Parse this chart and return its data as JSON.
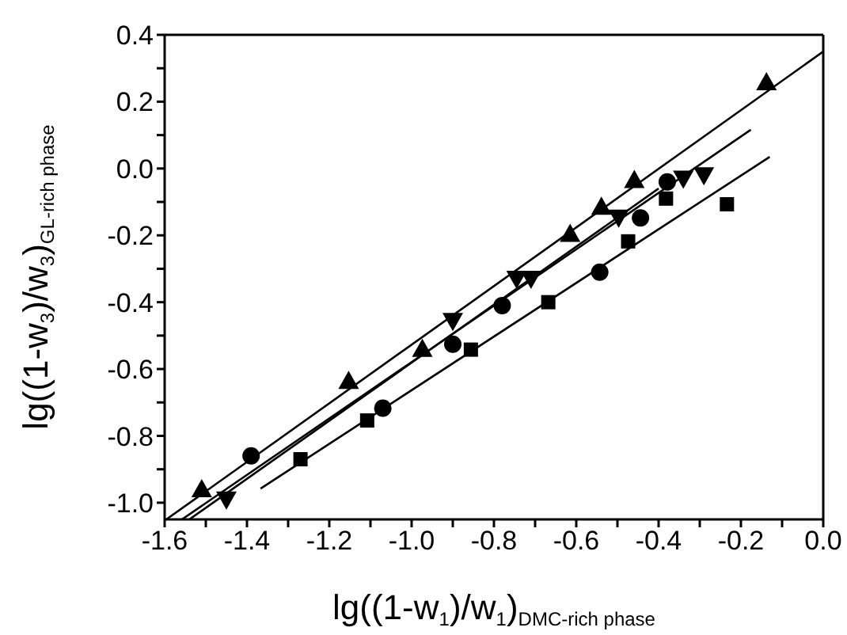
{
  "chart_data": {
    "type": "scatter",
    "xlabel": "lg((1-w$_{1}$)/w$_{1}$)$_{DMC-rich phase}$",
    "ylabel": "lg((1-w$_{3}$)/w$_{3}$)$_{GL-rich phase}$",
    "xlim": [
      -1.6,
      0.0
    ],
    "ylim": [
      -1.05,
      0.4
    ],
    "xticks": [
      -1.6,
      {
        "value": -1.5,
        "label": null
      },
      -1.4,
      {
        "value": -1.3,
        "label": null
      },
      -1.2,
      {
        "value": -1.1,
        "label": null
      },
      {
        "value": -1.0,
        "label": "-1.0"
      },
      {
        "value": -0.9,
        "label": null
      },
      -0.8,
      {
        "value": -0.7,
        "label": null
      },
      -0.6,
      {
        "value": -0.5,
        "label": null
      },
      -0.4,
      {
        "value": -0.3,
        "label": null
      },
      -0.2,
      {
        "value": -0.1,
        "label": null
      },
      {
        "value": 0,
        "label": "0.0"
      }
    ],
    "yticks": [
      {
        "value": -1.0,
        "label": "-1.0"
      },
      {
        "value": -0.9,
        "label": null
      },
      -0.8,
      {
        "value": -0.7,
        "label": null
      },
      -0.6,
      {
        "value": -0.5,
        "label": null
      },
      -0.4,
      {
        "value": -0.3,
        "label": null
      },
      -0.2,
      {
        "value": -0.1,
        "label": null
      },
      {
        "value": 0,
        "label": "0.0"
      },
      {
        "value": 0.1,
        "label": null
      },
      0.2,
      {
        "value": 0.3,
        "label": null
      },
      0.4
    ],
    "grid": false,
    "legend": false,
    "series": [
      {
        "marker": "triangle",
        "color": "#000000",
        "x": [
          -1.51,
          -1.153,
          -0.974,
          -0.615,
          -0.539,
          -0.459,
          -0.138
        ],
        "values": [
          -0.96,
          -0.636,
          -0.54,
          -0.196,
          -0.115,
          -0.035,
          0.258
        ]
      },
      {
        "marker": "triangle-down",
        "color": "#000000",
        "x": [
          -1.45,
          -0.9,
          -0.745,
          -0.71,
          -0.497,
          -0.34,
          -0.29
        ],
        "values": [
          -0.99,
          -0.456,
          -0.33,
          -0.33,
          -0.147,
          -0.03,
          -0.02
        ]
      },
      {
        "marker": "circle",
        "color": "#000000",
        "x": [
          -1.39,
          -1.07,
          -0.9,
          -0.78,
          -0.543,
          -0.444,
          -0.379
        ],
        "values": [
          -0.86,
          -0.717,
          -0.526,
          -0.41,
          -0.31,
          -0.148,
          -0.04
        ]
      },
      {
        "marker": "square",
        "color": "#000000",
        "x": [
          -1.27,
          -1.108,
          -0.856,
          -0.668,
          -0.474,
          -0.382,
          -0.234
        ],
        "values": [
          -0.87,
          -0.754,
          -0.542,
          -0.4,
          -0.218,
          -0.09,
          -0.107
        ]
      },
      {
        "type": "line",
        "marker": "none",
        "color": "#000000",
        "x": [
          -1.596,
          0.0
        ],
        "values": [
          -1.05,
          0.35
        ]
      },
      {
        "type": "line",
        "marker": "none",
        "color": "#000000",
        "x": [
          -1.558,
          -0.176
        ],
        "values": [
          -1.05,
          0.116
        ]
      },
      {
        "type": "line",
        "marker": "none",
        "color": "#000000",
        "x": [
          -1.54,
          -0.4
        ],
        "values": [
          -1.05,
          -0.06
        ]
      },
      {
        "type": "line",
        "marker": "none",
        "color": "#000000",
        "x": [
          -1.367,
          -0.13
        ],
        "values": [
          -0.958,
          0.035
        ]
      }
    ]
  }
}
